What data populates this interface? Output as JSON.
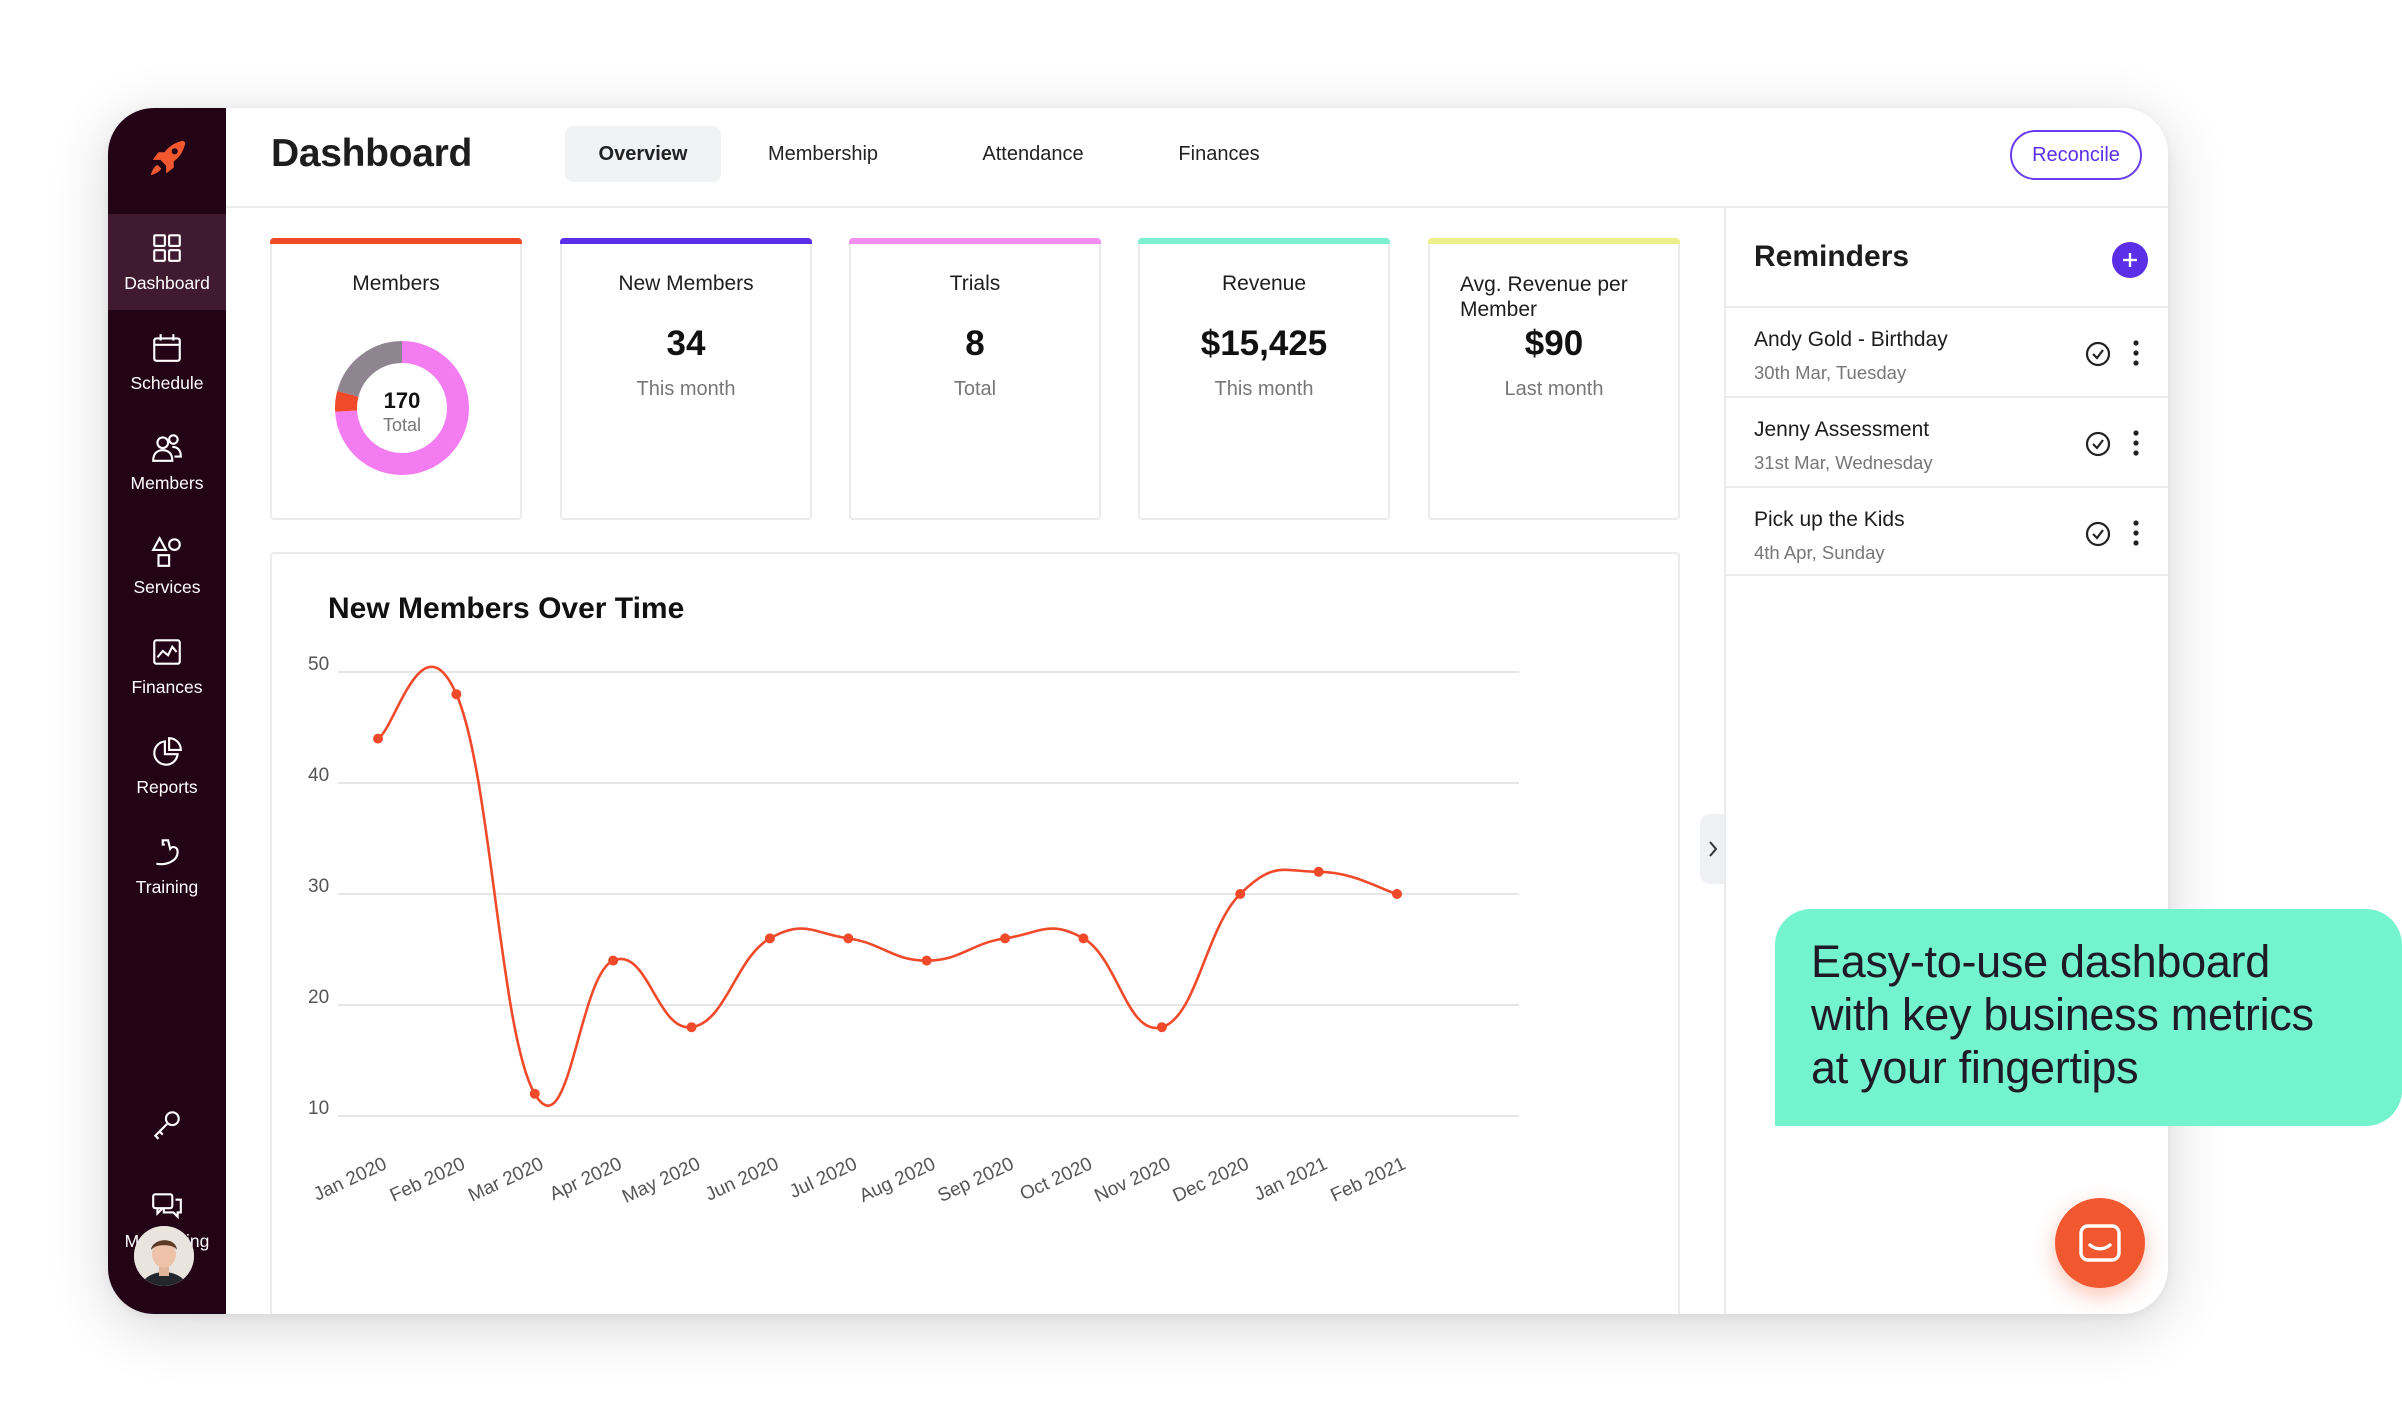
{
  "app": {
    "brand_color": "#f2582f",
    "accent": "#5b2ee8",
    "sidebar_color": "#230417"
  },
  "header": {
    "title": "Dashboard",
    "tabs": [
      {
        "label": "Overview",
        "active": true
      },
      {
        "label": "Membership",
        "active": false
      },
      {
        "label": "Attendance",
        "active": false
      },
      {
        "label": "Finances",
        "active": false
      }
    ],
    "reconcile_label": "Reconcile",
    "search_icon": "search-icon"
  },
  "sidebar": {
    "logo_icon": "rocket-icon",
    "items": [
      {
        "label": "Dashboard",
        "icon": "grid-icon",
        "active": true
      },
      {
        "label": "Schedule",
        "icon": "calendar-icon",
        "active": false
      },
      {
        "label": "Members",
        "icon": "users-icon",
        "active": false
      },
      {
        "label": "Services",
        "icon": "shapes-icon",
        "active": false
      },
      {
        "label": "Finances",
        "icon": "chart-icon",
        "active": false
      },
      {
        "label": "Reports",
        "icon": "pie-icon",
        "active": false
      },
      {
        "label": "Training",
        "icon": "arm-icon",
        "active": false
      }
    ],
    "key_icon": "key-icon",
    "messaging": {
      "label": "Messaging",
      "icon": "chat-bubbles-icon"
    },
    "avatar": "user-avatar"
  },
  "cards": [
    {
      "title": "Members",
      "value": "170",
      "sub": "Total",
      "accent": "#f04a2a",
      "type": "donut",
      "donut_segments": [
        {
          "color": "#f27cf0",
          "fraction": 0.74
        },
        {
          "color": "#f04a2a",
          "fraction": 0.05
        },
        {
          "color": "#8f8590",
          "fraction": 0.21
        }
      ]
    },
    {
      "title": "New Members",
      "value": "34",
      "sub": "This month",
      "accent": "#5b2ee8"
    },
    {
      "title": "Trials",
      "value": "8",
      "sub": "Total",
      "accent": "#f38ef0"
    },
    {
      "title": "Revenue",
      "value": "$15,425",
      "sub": "This month",
      "accent": "#7ef0d2"
    },
    {
      "title": "Avg. Revenue per Member",
      "value": "$90",
      "sub": "Last month",
      "accent": "#ecef8e"
    }
  ],
  "chart_title": "New Members Over Time",
  "chart_data": {
    "type": "line",
    "title": "New Members Over Time",
    "categories": [
      "Jan 2020",
      "Feb 2020",
      "Mar 2020",
      "Apr 2020",
      "May 2020",
      "Jun 2020",
      "Jul 2020",
      "Aug 2020",
      "Sep 2020",
      "Oct 2020",
      "Nov 2020",
      "Dec 2020",
      "Jan 2021",
      "Feb 2021"
    ],
    "series": [
      {
        "values": [
          44,
          48,
          12,
          24,
          18,
          26,
          26,
          24,
          26,
          26,
          18,
          30,
          32,
          30
        ],
        "color": "#f04a2a"
      }
    ],
    "yticks": [
      "50",
      "40",
      "30",
      "20",
      "10"
    ],
    "ylim": [
      10,
      50
    ],
    "grid": true
  },
  "reminders": {
    "title": "Reminders",
    "add_icon": "plus-icon",
    "items": [
      {
        "name": "Andy Gold - Birthday",
        "date": "30th Mar, Tuesday"
      },
      {
        "name": "Jenny Assessment",
        "date": "31st Mar, Wednesday"
      },
      {
        "name": "Pick up the Kids",
        "date": "4th Apr, Sunday"
      }
    ]
  },
  "callout": {
    "lines": [
      "Easy-to-use dashboard",
      "with key business metrics",
      "at your fingertips"
    ],
    "color": "#74f3cf"
  },
  "chat_icon": "chat-icon"
}
